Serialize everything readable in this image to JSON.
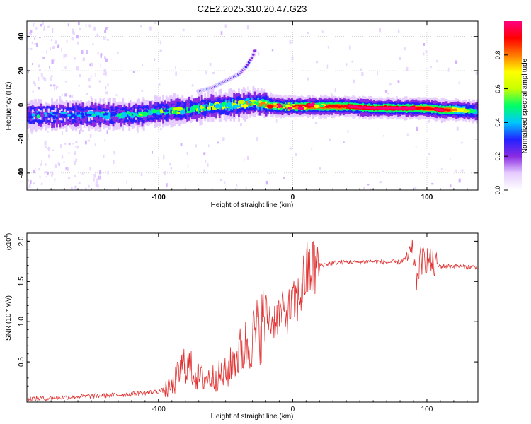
{
  "figure": {
    "title": "C2E2.2025.310.20.47.G23"
  },
  "chart_data": [
    {
      "type": "heatmap",
      "xlabel": "Height of straight line (km)",
      "ylabel": "Frequency (Hz)",
      "xlim": [
        -198,
        138
      ],
      "ylim": [
        -50,
        49
      ],
      "x_ticks": [
        -100,
        0,
        100
      ],
      "x_tick_labels": [
        "-100",
        "0",
        "100"
      ],
      "y_ticks": [
        -40,
        -20,
        0,
        20,
        40
      ],
      "y_tick_labels": [
        "-40",
        "-20",
        "0",
        "20",
        "40"
      ],
      "colorbar": {
        "label": "Normalized spectral amplitude",
        "range": [
          0,
          1
        ],
        "ticks": [
          0.0,
          0.2,
          0.4,
          0.6,
          0.8
        ],
        "tick_labels": [
          "0.0",
          "0.2",
          "0.4",
          "0.6",
          "0.8"
        ],
        "colormap": [
          "#ffffff",
          "#e6ccff",
          "#8a2be2",
          "#2222ff",
          "#00c8ff",
          "#00ff66",
          "#c8ff00",
          "#ffff00",
          "#ff7700",
          "#ff0000",
          "#ff0080"
        ]
      },
      "ridge": {
        "description": "dominant frequency vs height",
        "x": [
          -198,
          -180,
          -150,
          -120,
          -100,
          -80,
          -60,
          -40,
          -30,
          -25,
          -20,
          -10,
          0,
          20,
          40,
          60,
          80,
          100,
          110,
          120,
          138
        ],
        "y": [
          -6,
          -6,
          -6,
          -6,
          -4,
          -3,
          -1,
          0,
          1,
          1,
          0,
          -1,
          -1,
          -1,
          -1,
          -2,
          -2,
          -2,
          -3,
          -3,
          -4
        ],
        "amplitude": [
          0.35,
          0.35,
          0.4,
          0.45,
          0.5,
          0.55,
          0.6,
          0.65,
          0.7,
          0.75,
          0.85,
          0.9,
          0.95,
          0.85,
          0.95,
          1.0,
          1.0,
          0.9,
          1.0,
          0.8,
          0.4
        ]
      },
      "secondary_branch": {
        "description": "rising tone",
        "x": [
          -70,
          -60,
          -50,
          -40,
          -35,
          -30,
          -28
        ],
        "y": [
          8,
          10,
          14,
          18,
          22,
          28,
          32
        ],
        "amplitude": [
          0.4,
          0.35,
          0.35,
          0.3,
          0.3,
          0.25,
          0.25
        ]
      },
      "grid": true
    },
    {
      "type": "line",
      "xlabel": "Height of straight line (km)",
      "ylabel": "SNR (10 * v/v)",
      "ylabel_multiplier": "(x10",
      "ylabel_multiplier_exp": "4",
      "ylabel_multiplier_close": ")",
      "xlim": [
        -198,
        138
      ],
      "ylim": [
        0,
        2.1
      ],
      "x_ticks": [
        -100,
        0,
        100
      ],
      "x_tick_labels": [
        "-100",
        "0",
        "100"
      ],
      "y_ticks": [
        0.5,
        1.0,
        1.5,
        2.0
      ],
      "y_tick_labels": [
        "0.5",
        "1.0",
        "1.5",
        "2.0"
      ],
      "color": "#e03030",
      "grid": false,
      "series": [
        {
          "x": [
            -198,
            -180,
            -160,
            -140,
            -120,
            -100,
            -90,
            -85,
            -80,
            -75,
            -70,
            -60,
            -50,
            -40,
            -35,
            -30,
            -25,
            -20,
            -15,
            -10,
            -5,
            0,
            5,
            8,
            10,
            15,
            20,
            30,
            40,
            50,
            60,
            70,
            80,
            85,
            90,
            92,
            95,
            100,
            105,
            110,
            120,
            130,
            138
          ],
          "y": [
            0.04,
            0.05,
            0.07,
            0.08,
            0.1,
            0.13,
            0.18,
            0.35,
            0.5,
            0.4,
            0.3,
            0.3,
            0.35,
            0.6,
            0.7,
            0.8,
            0.9,
            1.1,
            1.0,
            1.1,
            1.1,
            1.2,
            1.3,
            1.5,
            1.6,
            1.65,
            1.7,
            1.73,
            1.74,
            1.74,
            1.75,
            1.74,
            1.74,
            1.8,
            1.85,
            1.5,
            1.75,
            1.78,
            1.7,
            1.69,
            1.69,
            1.68,
            1.68
          ]
        }
      ]
    }
  ]
}
